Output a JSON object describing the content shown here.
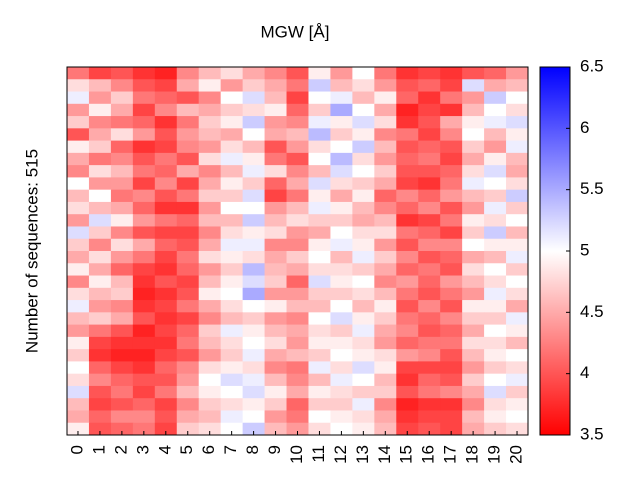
{
  "chart_data": {
    "type": "heatmap",
    "title": "MGW [Å]",
    "y_label": "Number of sequences: 515",
    "x": [
      0,
      1,
      2,
      3,
      4,
      5,
      6,
      7,
      8,
      9,
      10,
      11,
      12,
      13,
      14,
      15,
      16,
      17,
      18,
      19,
      20
    ],
    "colorscale": [
      "#ff0000",
      "#ffffff",
      "#0000ff"
    ],
    "zlim": [
      3.5,
      6.5
    ],
    "zticks": [
      3.5,
      4,
      4.5,
      5,
      5.5,
      6,
      6.5
    ],
    "z": [
      [
        4.2,
        3.9,
        4.0,
        3.8,
        3.7,
        4.3,
        4.6,
        4.8,
        4.5,
        4.3,
        4.0,
        4.9,
        4.4,
        5.0,
        4.2,
        3.8,
        3.9,
        3.8,
        4.0,
        4.1,
        4.4
      ],
      [
        4.8,
        4.6,
        4.3,
        4.0,
        3.9,
        4.5,
        4.9,
        4.4,
        4.7,
        4.5,
        4.2,
        5.3,
        4.6,
        4.8,
        4.4,
        4.0,
        4.1,
        3.9,
        5.2,
        4.5,
        4.6
      ],
      [
        5.1,
        4.4,
        4.7,
        4.2,
        4.1,
        4.0,
        4.3,
        5.0,
        5.2,
        4.6,
        3.9,
        5.0,
        5.1,
        4.6,
        4.9,
        4.1,
        3.8,
        4.2,
        4.4,
        5.3,
        5.0
      ],
      [
        4.4,
        4.9,
        4.5,
        3.9,
        4.3,
        4.6,
        4.5,
        4.7,
        4.8,
        4.9,
        4.1,
        4.7,
        5.5,
        5.0,
        4.5,
        3.7,
        3.9,
        3.8,
        4.6,
        5.0,
        4.8
      ],
      [
        4.7,
        4.3,
        4.2,
        4.1,
        3.8,
        4.2,
        4.7,
        4.9,
        5.3,
        4.4,
        4.3,
        5.1,
        4.9,
        5.2,
        4.8,
        3.8,
        4.0,
        4.5,
        4.9,
        5.1,
        5.2
      ],
      [
        4.0,
        4.5,
        4.8,
        4.4,
        4.0,
        4.4,
        4.6,
        4.5,
        5.0,
        4.5,
        4.6,
        5.4,
        4.7,
        4.9,
        4.3,
        4.2,
        3.9,
        4.3,
        5.0,
        4.6,
        4.9
      ],
      [
        4.9,
        4.7,
        4.1,
        3.8,
        3.9,
        4.3,
        4.4,
        4.8,
        4.6,
        4.0,
        4.4,
        4.8,
        5.0,
        5.3,
        4.6,
        4.0,
        4.1,
        4.0,
        4.7,
        4.4,
        5.1
      ],
      [
        4.5,
        4.2,
        4.3,
        4.0,
        4.2,
        4.0,
        4.8,
        5.1,
        4.9,
        4.2,
        4.0,
        5.0,
        5.4,
        4.8,
        4.4,
        4.1,
        4.2,
        3.9,
        4.5,
        4.9,
        4.6
      ],
      [
        4.3,
        4.8,
        4.6,
        4.2,
        4.1,
        4.5,
        4.3,
        4.6,
        5.1,
        4.8,
        4.3,
        4.6,
        5.2,
        5.0,
        4.7,
        4.0,
        4.0,
        4.1,
        4.8,
        5.2,
        4.5
      ],
      [
        5.0,
        4.4,
        4.4,
        3.9,
        4.3,
        3.9,
        4.5,
        4.9,
        4.7,
        4.1,
        4.5,
        5.2,
        4.8,
        4.7,
        4.5,
        3.9,
        3.8,
        4.2,
        5.1,
        5.0,
        4.8
      ],
      [
        4.6,
        5.0,
        4.2,
        4.3,
        4.0,
        4.2,
        4.7,
        4.7,
        5.2,
        3.9,
        4.2,
        4.9,
        4.5,
        4.9,
        4.1,
        4.3,
        4.1,
        4.4,
        4.6,
        4.7,
        5.3
      ],
      [
        4.8,
        4.6,
        4.5,
        4.1,
        3.8,
        3.8,
        4.4,
        5.0,
        5.0,
        4.4,
        4.6,
        5.1,
        4.9,
        4.6,
        4.3,
        4.1,
        4.3,
        4.0,
        4.4,
        5.1,
        4.7
      ],
      [
        4.4,
        5.2,
        4.9,
        4.4,
        4.2,
        4.1,
        4.6,
        4.6,
        5.3,
        4.6,
        4.8,
        4.7,
        4.7,
        4.5,
        4.6,
        3.8,
        3.9,
        4.2,
        4.9,
        4.8,
        5.0
      ],
      [
        5.2,
        4.7,
        4.3,
        4.0,
        3.9,
        3.9,
        4.3,
        4.8,
        4.9,
        4.8,
        4.4,
        4.5,
        5.0,
        4.8,
        4.8,
        4.2,
        4.1,
        3.9,
        4.7,
        5.3,
        4.6
      ],
      [
        4.7,
        4.3,
        4.8,
        4.5,
        4.1,
        4.0,
        4.5,
        5.1,
        5.1,
        4.3,
        4.3,
        4.9,
        5.1,
        4.9,
        4.4,
        4.0,
        4.3,
        4.3,
        5.0,
        4.9,
        4.9
      ],
      [
        4.5,
        4.8,
        4.4,
        4.2,
        3.9,
        4.2,
        4.8,
        4.9,
        4.8,
        4.5,
        4.7,
        5.0,
        4.6,
        5.1,
        4.7,
        4.3,
        4.0,
        4.1,
        4.5,
        4.6,
        5.1
      ],
      [
        4.9,
        4.5,
        4.1,
        3.9,
        3.8,
        4.1,
        4.4,
        4.7,
        5.4,
        4.6,
        4.5,
        4.8,
        4.8,
        4.7,
        4.5,
        4.1,
        4.2,
        4.0,
        4.8,
        5.0,
        4.7
      ],
      [
        4.3,
        4.9,
        4.6,
        3.8,
        4.0,
        3.9,
        4.6,
        4.9,
        5.2,
        4.7,
        4.1,
        5.2,
        4.9,
        5.0,
        4.3,
        4.4,
        4.1,
        4.4,
        4.6,
        4.8,
        5.0
      ],
      [
        4.8,
        4.6,
        4.7,
        3.7,
        3.8,
        4.0,
        4.9,
        5.0,
        5.5,
        4.4,
        4.4,
        4.7,
        4.7,
        4.8,
        4.6,
        4.2,
        4.0,
        4.2,
        4.4,
        5.1,
        4.8
      ],
      [
        5.1,
        4.4,
        4.3,
        3.8,
        3.9,
        4.2,
        4.5,
        4.8,
        5.0,
        4.9,
        4.6,
        4.6,
        5.0,
        4.6,
        4.9,
        4.0,
        4.3,
        4.0,
        4.9,
        4.9,
        4.5
      ],
      [
        4.6,
        4.7,
        4.5,
        4.0,
        3.8,
        3.9,
        4.3,
        4.6,
        4.7,
        4.4,
        4.3,
        5.0,
        5.2,
        4.9,
        4.7,
        4.2,
        4.1,
        4.3,
        4.7,
        4.7,
        5.1
      ],
      [
        4.4,
        4.2,
        4.0,
        3.7,
        3.9,
        4.1,
        4.7,
        5.1,
        4.9,
        4.6,
        4.5,
        4.8,
        4.7,
        5.1,
        4.5,
        4.3,
        4.0,
        4.1,
        4.5,
        5.0,
        4.9
      ],
      [
        4.9,
        3.9,
        3.8,
        3.8,
        3.8,
        4.2,
        4.6,
        4.8,
        5.0,
        4.8,
        4.4,
        4.9,
        4.9,
        4.8,
        4.4,
        4.1,
        4.2,
        4.2,
        4.8,
        4.8,
        4.6
      ],
      [
        4.7,
        3.8,
        3.7,
        3.7,
        3.9,
        4.0,
        4.4,
        4.7,
        5.1,
        4.5,
        4.6,
        4.7,
        5.0,
        4.9,
        4.8,
        4.4,
        4.3,
        4.0,
        4.6,
        4.9,
        5.0
      ],
      [
        5.0,
        4.1,
        3.9,
        3.8,
        4.1,
        4.3,
        4.8,
        4.9,
        4.8,
        4.3,
        4.2,
        5.1,
        4.8,
        5.2,
        4.9,
        3.9,
        3.9,
        3.9,
        4.4,
        4.7,
        4.8
      ],
      [
        4.8,
        4.3,
        4.1,
        4.0,
        4.0,
        4.4,
        5.0,
        5.2,
        5.1,
        4.6,
        4.3,
        4.6,
        5.1,
        5.0,
        4.6,
        3.8,
        4.1,
        4.0,
        4.7,
        5.0,
        5.1
      ],
      [
        5.2,
        4.0,
        4.2,
        3.9,
        4.2,
        4.6,
        4.9,
        5.0,
        5.2,
        4.9,
        4.5,
        4.9,
        4.8,
        4.7,
        4.7,
        4.0,
        4.2,
        4.3,
        4.5,
        5.2,
        4.7
      ],
      [
        4.6,
        3.9,
        4.0,
        4.1,
        3.9,
        4.3,
        4.7,
        4.8,
        4.9,
        4.7,
        4.1,
        4.7,
        4.7,
        5.1,
        4.3,
        3.7,
        3.8,
        3.8,
        4.3,
        4.8,
        4.9
      ],
      [
        4.5,
        4.1,
        4.3,
        4.3,
        4.0,
        4.5,
        4.6,
        5.1,
        5.0,
        4.4,
        4.2,
        5.0,
        4.9,
        4.8,
        4.5,
        3.8,
        3.9,
        3.9,
        4.6,
        4.9,
        5.0
      ],
      [
        4.9,
        4.0,
        4.1,
        4.2,
        3.9,
        4.7,
        4.8,
        5.0,
        5.3,
        4.6,
        4.4,
        4.8,
        5.0,
        4.9,
        4.6,
        3.9,
        4.0,
        3.9,
        4.5,
        4.7,
        4.8
      ]
    ]
  }
}
